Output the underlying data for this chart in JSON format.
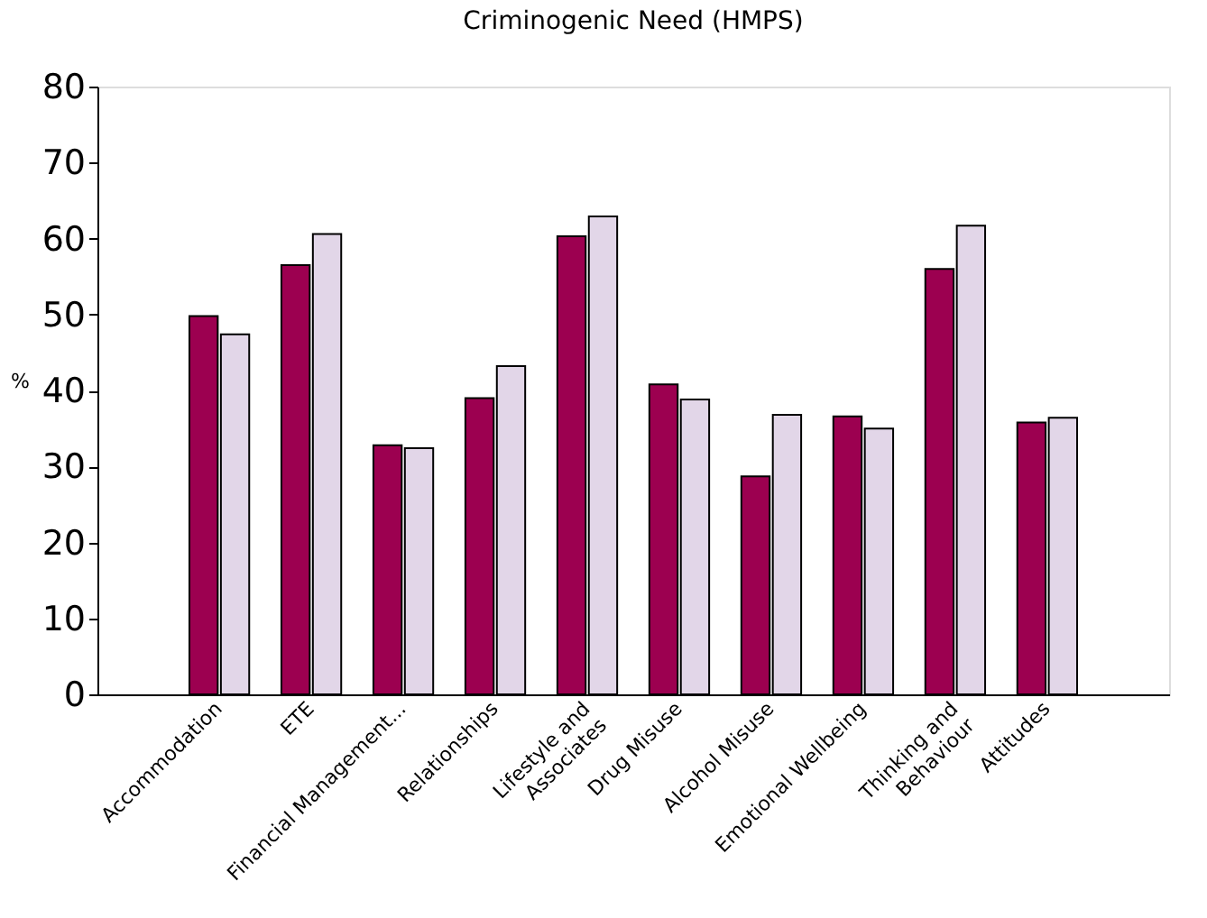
{
  "chart_data": {
    "type": "bar",
    "title": "Criminogenic Need (HMPS)",
    "ylabel": "%",
    "categories": [
      "Accommodation",
      "ETE",
      "Financial Management...",
      "Relationships",
      "Lifestyle and\nAssociates",
      "Drug Misuse",
      "Alcohol Misuse",
      "Emotional Wellbeing",
      "Thinking and\nBehaviour",
      "Attitudes"
    ],
    "series": [
      {
        "color": "#9c0050",
        "values": [
          49.8,
          56.5,
          32.8,
          39.0,
          60.3,
          40.8,
          28.7,
          36.6,
          56.0,
          35.8
        ]
      },
      {
        "color": "#e2d6e8",
        "values": [
          47.4,
          60.6,
          32.4,
          43.2,
          62.9,
          38.8,
          36.8,
          35.0,
          61.7,
          36.4
        ]
      }
    ],
    "ylim": [
      0,
      80
    ],
    "yticks": [
      0,
      10,
      20,
      30,
      40,
      50,
      60,
      70,
      80
    ],
    "grid": false,
    "legend": false
  }
}
